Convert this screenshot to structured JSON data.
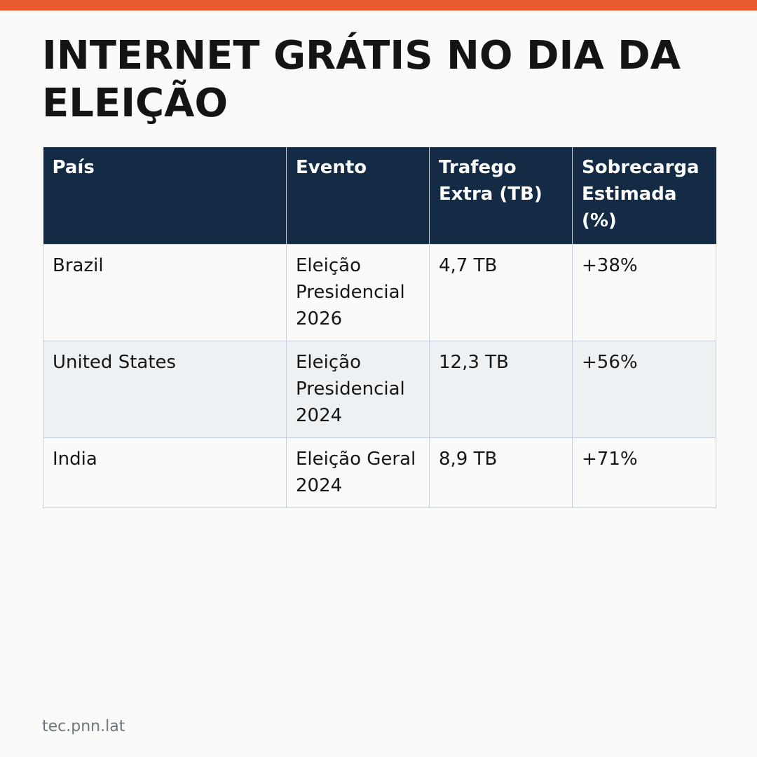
{
  "title": "INTERNET GRÁTIS NO DIA DA ELEIÇÃO",
  "colors": {
    "accent_bar": "#e85c30",
    "header_bg": "#132b45",
    "row_alt_bg": "#edf1f4",
    "page_bg": "#fafaf8"
  },
  "table": {
    "headers": [
      "País",
      "Evento",
      "Trafego Extra (TB)",
      "Sobrecarga Estimada (%)"
    ],
    "rows": [
      [
        "Brazil",
        "Eleição Presidencial 2026",
        "4,7 TB",
        "+38%"
      ],
      [
        "United States",
        "Eleição Presidencial 2024",
        "12,3 TB",
        "+56%"
      ],
      [
        "India",
        "Eleição Geral 2024",
        "8,9 TB",
        "+71%"
      ]
    ]
  },
  "footer": {
    "source": "tec.pnn.lat"
  }
}
